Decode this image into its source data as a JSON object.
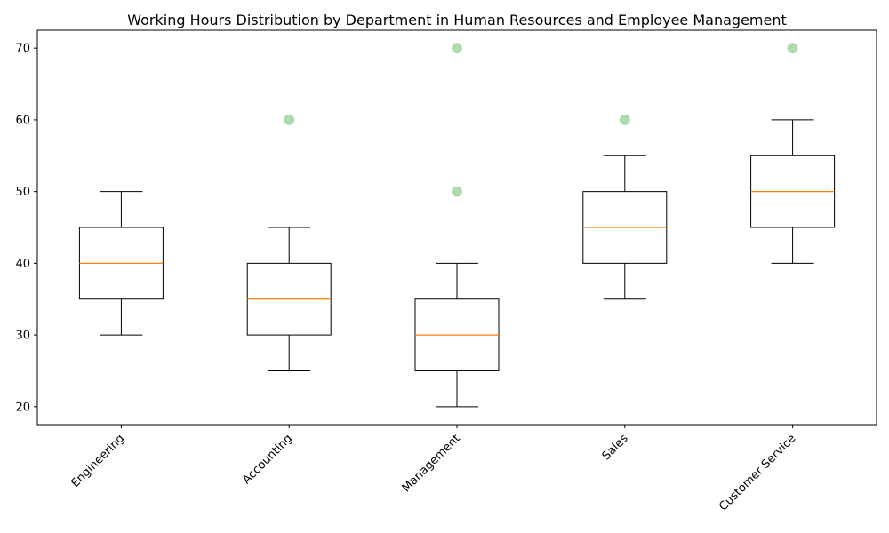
{
  "chart_data": {
    "type": "box",
    "title": "Working Hours Distribution by Department in Human Resources and Employee Management",
    "xlabel": "",
    "ylabel": "",
    "categories": [
      "Engineering",
      "Accounting",
      "Management",
      "Sales",
      "Customer Service"
    ],
    "boxes": [
      {
        "category": "Engineering",
        "whisker_low": 30,
        "q1": 35,
        "median": 40,
        "q3": 45,
        "whisker_high": 50,
        "outliers": []
      },
      {
        "category": "Accounting",
        "whisker_low": 25,
        "q1": 30,
        "median": 35,
        "q3": 40,
        "whisker_high": 45,
        "outliers": [
          60
        ]
      },
      {
        "category": "Management",
        "whisker_low": 20,
        "q1": 25,
        "median": 30,
        "q3": 35,
        "whisker_high": 40,
        "outliers": [
          50,
          70
        ]
      },
      {
        "category": "Sales",
        "whisker_low": 35,
        "q1": 40,
        "median": 45,
        "q3": 50,
        "whisker_high": 55,
        "outliers": [
          60
        ]
      },
      {
        "category": "Customer Service",
        "whisker_low": 40,
        "q1": 45,
        "median": 50,
        "q3": 55,
        "whisker_high": 60,
        "outliers": [
          70
        ]
      }
    ],
    "yticks": [
      20,
      30,
      40,
      50,
      60,
      70
    ],
    "ylim": [
      17.5,
      72.5
    ],
    "grid": false,
    "colors": {
      "box": "#000000",
      "median": "#ff7f0e",
      "outlier": "#2ca02c"
    }
  }
}
